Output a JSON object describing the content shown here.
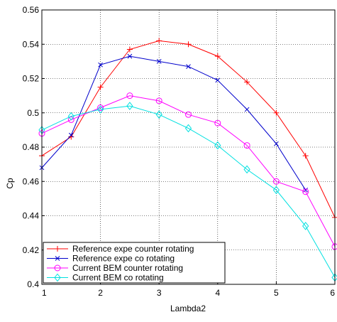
{
  "chart_data": {
    "type": "line",
    "title": "",
    "xlabel": "Lambda2",
    "ylabel": "Cp",
    "xlim": [
      1,
      6
    ],
    "ylim": [
      0.4,
      0.56
    ],
    "xticks": [
      "1",
      "2",
      "3",
      "4",
      "5",
      "6"
    ],
    "yticks": [
      "0.4",
      "0.42",
      "0.44",
      "0.46",
      "0.48",
      "0.5",
      "0.52",
      "0.54",
      "0.56"
    ],
    "grid": true,
    "legend_position": "bottom-left",
    "series": [
      {
        "name": "Reference expe counter rotating",
        "color": "#ff0000",
        "marker": "plus",
        "x": [
          1,
          1.5,
          2,
          2.5,
          3,
          3.5,
          4,
          4.5,
          5,
          5.5,
          6
        ],
        "y": [
          0.475,
          0.486,
          0.515,
          0.537,
          0.542,
          0.54,
          0.533,
          0.518,
          0.5,
          0.475,
          0.439
        ]
      },
      {
        "name": "Reference expe co rotating",
        "color": "#0000cc",
        "marker": "x",
        "x": [
          1,
          1.5,
          2,
          2.5,
          3,
          3.5,
          4,
          4.5,
          5,
          5.5
        ],
        "y": [
          0.468,
          0.487,
          0.528,
          0.533,
          0.53,
          0.527,
          0.519,
          0.502,
          0.482,
          0.455
        ]
      },
      {
        "name": "Current BEM counter rotating",
        "color": "#ff00ff",
        "marker": "circle",
        "x": [
          1,
          1.5,
          2,
          2.5,
          3,
          3.5,
          4,
          4.5,
          5,
          5.5,
          6
        ],
        "y": [
          0.488,
          0.496,
          0.503,
          0.51,
          0.507,
          0.499,
          0.494,
          0.481,
          0.46,
          0.454,
          0.422
        ]
      },
      {
        "name": "Current BEM co rotating",
        "color": "#00e0e0",
        "marker": "diamond",
        "x": [
          1,
          1.5,
          2,
          2.5,
          3,
          3.5,
          4,
          4.5,
          5,
          5.5,
          6
        ],
        "y": [
          0.49,
          0.498,
          0.502,
          0.504,
          0.499,
          0.491,
          0.481,
          0.467,
          0.455,
          0.434,
          0.404
        ]
      }
    ]
  }
}
